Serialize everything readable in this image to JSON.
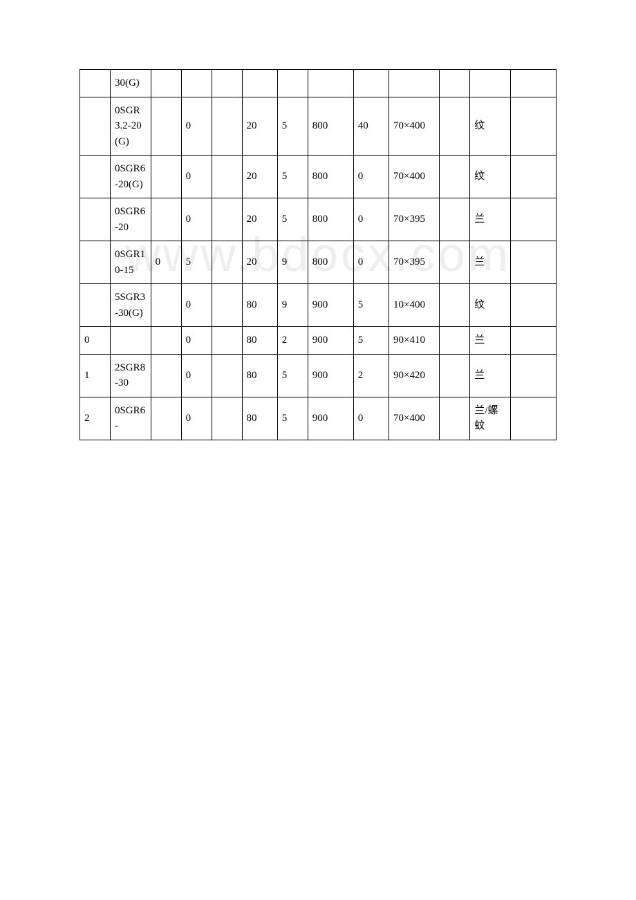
{
  "watermark": "www.bdocx.com",
  "table": {
    "background_color": "#ffffff",
    "border_color": "#000000",
    "text_color": "#000000",
    "font_size": 15,
    "rows": [
      {
        "c1": "",
        "c2": "30(G)",
        "c3": "",
        "c4": "",
        "c5": "",
        "c6": "",
        "c7": "",
        "c8": "",
        "c9": "",
        "c10": "",
        "c11": "",
        "c12": "",
        "c13": ""
      },
      {
        "c1": "",
        "c2": "0SGR3.2-20(G)",
        "c3": "",
        "c4": "0",
        "c5": "",
        "c6": "20",
        "c7": "5",
        "c8": "800",
        "c9": "40",
        "c10": "70×400",
        "c11": "",
        "c12": "纹",
        "c13": ""
      },
      {
        "c1": "",
        "c2": "0SGR6-20(G)",
        "c3": "",
        "c4": "0",
        "c5": "",
        "c6": "20",
        "c7": "5",
        "c8": "800",
        "c9": "0",
        "c10": "70×400",
        "c11": "",
        "c12": "纹",
        "c13": ""
      },
      {
        "c1": "",
        "c2": "0SGR6-20",
        "c3": "",
        "c4": "0",
        "c5": "",
        "c6": "20",
        "c7": "5",
        "c8": "800",
        "c9": "0",
        "c10": "70×395",
        "c11": "",
        "c12": "兰",
        "c13": ""
      },
      {
        "c1": "",
        "c2": "0SGR10-15",
        "c3": "0",
        "c4": "5",
        "c5": "",
        "c6": "20",
        "c7": "9",
        "c8": "800",
        "c9": "0",
        "c10": "70×395",
        "c11": "",
        "c12": "兰",
        "c13": ""
      },
      {
        "c1": "",
        "c2": "5SGR3-30(G)",
        "c3": "",
        "c4": "0",
        "c5": "",
        "c6": "80",
        "c7": "9",
        "c8": "900",
        "c9": "5",
        "c10": "10×400",
        "c11": "",
        "c12": "纹",
        "c13": ""
      },
      {
        "c1": "0",
        "c2": "",
        "c3": "",
        "c4": "0",
        "c5": "",
        "c6": "80",
        "c7": "2",
        "c8": "900",
        "c9": "5",
        "c10": "90×410",
        "c11": "",
        "c12": "兰",
        "c13": ""
      },
      {
        "c1": "1",
        "c2": "2SGR8-30",
        "c3": "",
        "c4": "0",
        "c5": "",
        "c6": "80",
        "c7": "5",
        "c8": "900",
        "c9": "2",
        "c10": "90×420",
        "c11": "",
        "c12": "兰",
        "c13": ""
      },
      {
        "c1": "2",
        "c2": "0SGR6-",
        "c3": "",
        "c4": "0",
        "c5": "",
        "c6": "80",
        "c7": "5",
        "c8": "900",
        "c9": "0",
        "c10": "70×400",
        "c11": "",
        "c12": "兰/螺蚊",
        "c13": ""
      }
    ]
  }
}
